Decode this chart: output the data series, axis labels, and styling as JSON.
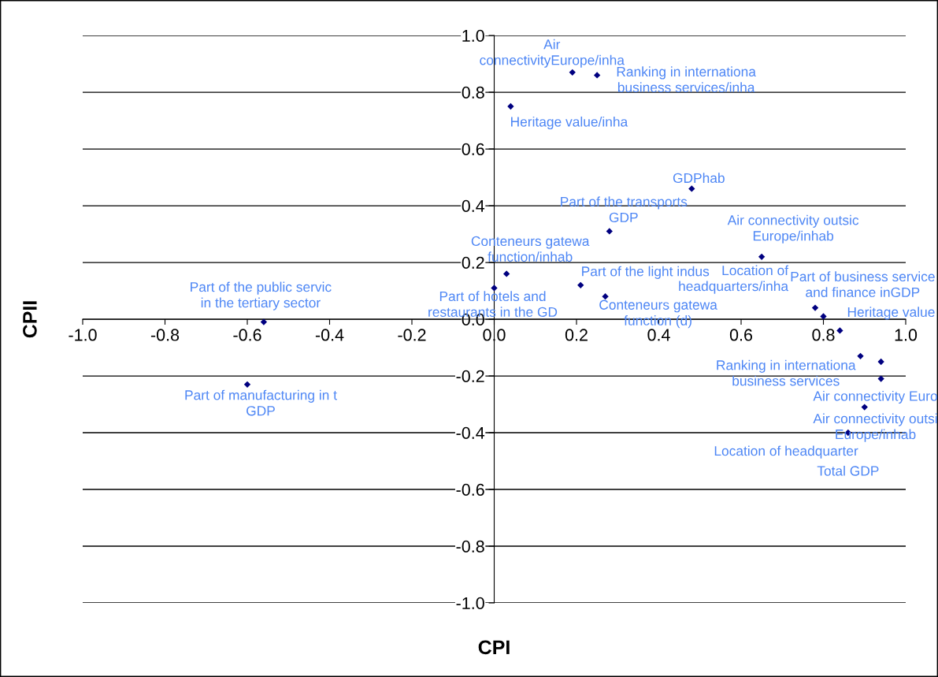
{
  "chart_data": {
    "type": "scatter",
    "xlabel": "CPI",
    "ylabel": "CPII",
    "xlim": [
      -1,
      1
    ],
    "ylim": [
      -1,
      1
    ],
    "xticks": [
      {
        "value": -1,
        "label": "-1.0"
      },
      {
        "value": -0.8,
        "label": "-0.8"
      },
      {
        "value": -0.6,
        "label": "-0.6"
      },
      {
        "value": -0.4,
        "label": "-0.4"
      },
      {
        "value": -0.2,
        "label": "-0.2"
      },
      {
        "value": 0,
        "label": "0.0"
      },
      {
        "value": 0.2,
        "label": "0.2"
      },
      {
        "value": 0.4,
        "label": "0.4"
      },
      {
        "value": 0.6,
        "label": "0.6"
      },
      {
        "value": 0.8,
        "label": "0.8"
      },
      {
        "value": 1,
        "label": "1.0"
      }
    ],
    "yticks": [
      {
        "value": -1,
        "label": "-1.0"
      },
      {
        "value": -0.8,
        "label": "-0.8"
      },
      {
        "value": -0.6,
        "label": "-0.6"
      },
      {
        "value": -0.4,
        "label": "-0.4"
      },
      {
        "value": -0.2,
        "label": "-0.2"
      },
      {
        "value": 0,
        "label": "0.0"
      },
      {
        "value": 0.2,
        "label": "0.2"
      },
      {
        "value": 0.4,
        "label": "0.4"
      },
      {
        "value": 0.6,
        "label": "0.6"
      },
      {
        "value": 0.8,
        "label": "0.8"
      },
      {
        "value": 1,
        "label": "1.0"
      }
    ],
    "grid": "y",
    "legend": false,
    "marker": "diamond",
    "series": [
      {
        "color": "#000080",
        "x": [
          0.19,
          0.25,
          0.04,
          0.48,
          0.28,
          0.03,
          0.0,
          0.21,
          0.27,
          -0.56,
          -0.6,
          0.65,
          0.78,
          0.8,
          0.84,
          0.89,
          0.94,
          0.94,
          0.9,
          0.86
        ],
        "values": [
          0.87,
          0.86,
          0.75,
          0.46,
          0.31,
          0.16,
          0.11,
          0.12,
          0.08,
          -0.01,
          -0.23,
          0.22,
          0.04,
          0.01,
          -0.04,
          -0.13,
          -0.15,
          -0.21,
          -0.31,
          -0.4
        ]
      }
    ],
    "annotations": [
      {
        "text": "Air\nconnectivityEurope/inha",
        "x": 0.19,
        "y": 0.87
      },
      {
        "text": "Ranking in internationa\nbusiness services/inha",
        "x": 0.25,
        "y": 0.86
      },
      {
        "text": "Heritage value/inha",
        "x": 0.04,
        "y": 0.75
      },
      {
        "text": "GDPhab",
        "x": 0.48,
        "y": 0.46
      },
      {
        "text": "Part of the transports\nGDP",
        "x": 0.28,
        "y": 0.31
      },
      {
        "text": "Conteneurs gatewa\nfunction/inhab",
        "x": 0.03,
        "y": 0.16
      },
      {
        "text": "Part of hotels and\nrestaurants in the GD",
        "x": 0.0,
        "y": 0.11
      },
      {
        "text": "Part of the light indus",
        "x": 0.21,
        "y": 0.12
      },
      {
        "text": "Conteneurs gatewa\nfunction (d)",
        "x": 0.27,
        "y": 0.08
      },
      {
        "text": "Part of the public servic\nin the tertiary sector",
        "x": -0.56,
        "y": -0.01
      },
      {
        "text": "Part of manufacturing in t\nGDP",
        "x": -0.6,
        "y": -0.23
      },
      {
        "text": "Air connectivity outsic\nEurope/inhab",
        "x": 0.65,
        "y": 0.22
      },
      {
        "text": "Location of\nheadquarters/inha",
        "x": 0.78,
        "y": 0.04
      },
      {
        "text": "Part of business service\nand finance inGDP",
        "x": 0.8,
        "y": 0.01
      },
      {
        "text": "Heritage value",
        "x": 0.84,
        "y": -0.04
      },
      {
        "text": "Ranking in internationa\nbusiness services",
        "x": 0.89,
        "y": -0.13
      },
      {
        "text": "Air connectivity Euro",
        "x": 0.94,
        "y": -0.15
      },
      {
        "text": "Air connectivity outsi\nEurope/inhab",
        "x": 0.94,
        "y": -0.21
      },
      {
        "text": "Location of headquarter",
        "x": 0.9,
        "y": -0.31
      },
      {
        "text": "Total GDP",
        "x": 0.86,
        "y": -0.4
      }
    ]
  }
}
